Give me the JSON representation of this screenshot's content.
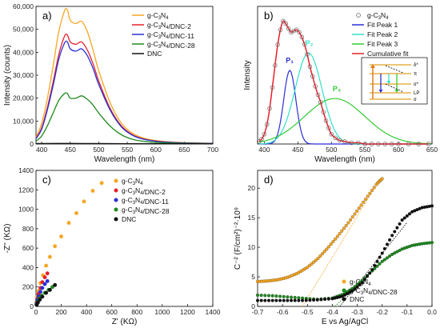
{
  "chart_data": [
    {
      "panel": "a)",
      "type": "line",
      "xlabel": "Wavelength (nm)",
      "ylabel": "Intensity (counts)",
      "xlim": [
        390,
        700
      ],
      "ylim": [
        0,
        60000
      ],
      "xticks": [
        "400",
        "450",
        "500",
        "550",
        "600",
        "650",
        "700"
      ],
      "yticks": [
        "0",
        "10,000",
        "20,000",
        "30,000",
        "40,000",
        "50,000",
        "60,000"
      ],
      "legend_position": "top-right",
      "series": [
        {
          "name": "g-C3N4",
          "color": "#f5a623",
          "peak1": 58500,
          "peak2": 54000,
          "x": [
            390,
            400,
            410,
            420,
            430,
            440,
            445,
            450,
            460,
            470,
            480,
            490,
            500,
            520,
            540,
            560,
            580,
            600,
            620,
            650,
            700
          ],
          "y": [
            3000,
            9000,
            20000,
            34000,
            49000,
            58000,
            58500,
            54000,
            52500,
            53500,
            49000,
            41000,
            32000,
            18000,
            9000,
            4500,
            2500,
            1500,
            1000,
            600,
            300
          ]
        },
        {
          "name": "g-C3N4/DNC-2",
          "color": "#e8202a",
          "x": [
            390,
            400,
            410,
            420,
            430,
            440,
            445,
            450,
            460,
            470,
            480,
            490,
            500,
            520,
            540,
            560,
            580,
            600,
            620,
            650,
            700
          ],
          "y": [
            2500,
            7000,
            16000,
            27000,
            39000,
            47000,
            47500,
            44500,
            43500,
            44500,
            41000,
            35000,
            27500,
            15500,
            7800,
            3900,
            2100,
            1300,
            800,
            500,
            250
          ]
        },
        {
          "name": "g-C3N4/DNC-11",
          "color": "#2a2fd6",
          "x": [
            390,
            400,
            410,
            420,
            430,
            440,
            445,
            450,
            460,
            470,
            480,
            490,
            500,
            520,
            540,
            560,
            580,
            600,
            620,
            650,
            700
          ],
          "y": [
            2300,
            6500,
            15000,
            25500,
            37000,
            44000,
            44500,
            41500,
            40500,
            41500,
            38500,
            33000,
            26000,
            14800,
            7400,
            3700,
            2000,
            1200,
            750,
            450,
            230
          ]
        },
        {
          "name": "g-C3N4/DNC-28",
          "color": "#1f8a1f",
          "x": [
            390,
            400,
            410,
            420,
            430,
            440,
            445,
            450,
            460,
            470,
            480,
            490,
            500,
            520,
            540,
            560,
            580,
            600,
            620,
            650,
            700
          ],
          "y": [
            1200,
            3500,
            8000,
            13500,
            19000,
            22000,
            22000,
            20000,
            20000,
            21000,
            19500,
            17000,
            13500,
            7800,
            4000,
            2000,
            1100,
            700,
            450,
            280,
            150
          ]
        },
        {
          "name": "DNC",
          "color": "#111111",
          "x": [
            390,
            400,
            450,
            500,
            550,
            600,
            650,
            700
          ],
          "y": [
            200,
            200,
            250,
            200,
            150,
            120,
            100,
            80
          ]
        }
      ]
    },
    {
      "panel": "b)",
      "type": "line",
      "xlabel": "Wavelength (nm)",
      "ylabel": "Intensity",
      "xlim": [
        390,
        650
      ],
      "xticks": [
        "400",
        "450",
        "500",
        "550",
        "600",
        "650"
      ],
      "legend_position": "top-right",
      "annotations": [
        "P₁",
        "P₂",
        "P₃"
      ],
      "series": [
        {
          "name": "g-C3N4",
          "style": "open-circles",
          "color": "#666666",
          "x": [
            392,
            396,
            400,
            404,
            408,
            412,
            416,
            420,
            424,
            428,
            432,
            436,
            440,
            444,
            448,
            452,
            456,
            460,
            464,
            468,
            472,
            476,
            480,
            484,
            488,
            492,
            496,
            500,
            506,
            512,
            520,
            530,
            540,
            550,
            560,
            570,
            580,
            590,
            600,
            615,
            630,
            645
          ],
          "y": [
            0.02,
            0.04,
            0.08,
            0.16,
            0.29,
            0.46,
            0.64,
            0.81,
            0.93,
            1.0,
            0.98,
            0.94,
            0.91,
            0.92,
            0.93,
            0.91,
            0.87,
            0.81,
            0.73,
            0.63,
            0.55,
            0.47,
            0.4,
            0.34,
            0.26,
            0.19,
            0.13,
            0.08,
            0.05,
            0.03,
            0.02,
            0.01,
            0.01,
            0.0,
            0.0,
            0.0,
            0.0,
            0.0,
            0.0,
            0.0,
            0.0,
            0.0
          ]
        },
        {
          "name": "Fit Peak 1",
          "color": "#2a2fd6",
          "center": 438,
          "height": 0.6,
          "width": 9
        },
        {
          "name": "Fit Peak 2",
          "color": "#33e0c8",
          "center": 466,
          "height": 0.74,
          "width": 20
        },
        {
          "name": "Fit Peak 3",
          "color": "#33cc33",
          "center": 505,
          "height": 0.37,
          "width": 45
        },
        {
          "name": "Cumulative fit",
          "color": "#e8202a",
          "x": [
            392,
            396,
            400,
            404,
            408,
            412,
            416,
            420,
            424,
            428,
            432,
            436,
            440,
            444,
            448,
            452,
            456,
            460,
            464,
            468,
            472,
            476,
            480,
            484,
            488,
            492,
            496,
            500,
            506,
            512,
            520,
            530,
            540,
            550,
            560,
            570,
            580,
            590,
            600,
            615,
            630,
            645
          ],
          "y": [
            0.02,
            0.04,
            0.08,
            0.16,
            0.29,
            0.46,
            0.64,
            0.81,
            0.93,
            1.0,
            0.98,
            0.94,
            0.91,
            0.92,
            0.93,
            0.91,
            0.87,
            0.81,
            0.73,
            0.63,
            0.55,
            0.47,
            0.4,
            0.34,
            0.26,
            0.19,
            0.13,
            0.08,
            0.05,
            0.03,
            0.02,
            0.01,
            0.01,
            0.0,
            0.0,
            0.0,
            0.0,
            0.0,
            0.0,
            0.0,
            0.0,
            0.0
          ]
        }
      ],
      "inset_labels": [
        "δ*",
        "π",
        "σ*",
        "LP",
        "σ"
      ]
    },
    {
      "panel": "c)",
      "type": "scatter",
      "xlabel": "Z' (KΩ)",
      "ylabel": "-Z'' (KΩ)",
      "xlim": [
        0,
        1400
      ],
      "ylim": [
        0,
        1400
      ],
      "xticks": [
        "0",
        "200",
        "400",
        "600",
        "800",
        "1000",
        "1200",
        "1400"
      ],
      "yticks": [
        "0",
        "200",
        "400",
        "600",
        "800",
        "1000",
        "1200",
        "1400"
      ],
      "legend_position": "top-left",
      "series": [
        {
          "name": "g-C3N4",
          "color": "#f5a623",
          "x": [
            5,
            10,
            20,
            35,
            55,
            80,
            110,
            150,
            200,
            260,
            320,
            380,
            450,
            520
          ],
          "y": [
            50,
            100,
            160,
            240,
            320,
            420,
            510,
            620,
            720,
            860,
            960,
            1080,
            1190,
            1270
          ]
        },
        {
          "name": "g-C3N4/DNC-2",
          "color": "#e8202a",
          "x": [
            5,
            10,
            20,
            35,
            50,
            70,
            90
          ],
          "y": [
            40,
            80,
            130,
            190,
            250,
            300,
            340
          ]
        },
        {
          "name": "g-C3N4/DNC-11",
          "color": "#2a2fd6",
          "x": [
            5,
            10,
            20,
            35,
            50,
            70,
            90
          ],
          "y": [
            30,
            65,
            105,
            150,
            190,
            230,
            260
          ]
        },
        {
          "name": "g-C3N4/DNC-28",
          "color": "#1f8a1f",
          "x": [
            5,
            12,
            25,
            45,
            70,
            100,
            130
          ],
          "y": [
            20,
            45,
            80,
            110,
            140,
            170,
            200
          ]
        },
        {
          "name": "DNC",
          "color": "#111111",
          "x": [
            5,
            15,
            30,
            50,
            80,
            110,
            150
          ],
          "y": [
            15,
            40,
            70,
            100,
            140,
            170,
            220
          ]
        }
      ]
    },
    {
      "panel": "d)",
      "type": "scatter",
      "xlabel": "E vs Ag/AgCl",
      "ylabel": "C⁻² (F/cm²)⁻²·10⁹",
      "xlim": [
        -0.7,
        0.0
      ],
      "ylim": [
        0,
        23
      ],
      "xticks": [
        "-0.7",
        "-0.6",
        "-0.5",
        "-0.4",
        "-0.3",
        "-0.2",
        "-0.1",
        "0.0"
      ],
      "yticks": [
        "0",
        "5",
        "10",
        "15",
        "20"
      ],
      "legend_position": "bottom-left",
      "series": [
        {
          "name": "g-C3N4",
          "color": "#f5a623",
          "x": [
            -0.7,
            -0.66,
            -0.62,
            -0.58,
            -0.54,
            -0.5,
            -0.46,
            -0.42,
            -0.38,
            -0.34,
            -0.3,
            -0.26,
            -0.22,
            -0.2
          ],
          "y": [
            4.2,
            4.3,
            4.5,
            4.9,
            5.6,
            6.6,
            8.0,
            9.8,
            11.8,
            13.9,
            16.2,
            18.5,
            20.8,
            21.6
          ]
        },
        {
          "name": "g-C3N4/DNC-28",
          "color": "#1f8a1f",
          "x": [
            -0.7,
            -0.64,
            -0.58,
            -0.52,
            -0.46,
            -0.4,
            -0.36,
            -0.32,
            -0.28,
            -0.24,
            -0.2,
            -0.16,
            -0.12,
            -0.08,
            -0.04,
            0.0
          ],
          "y": [
            1.9,
            1.8,
            1.6,
            1.4,
            1.2,
            1.4,
            2.0,
            3.0,
            4.4,
            6.0,
            7.6,
            8.8,
            9.7,
            10.3,
            10.6,
            10.8
          ]
        },
        {
          "name": "DNC",
          "color": "#111111",
          "x": [
            -0.7,
            -0.64,
            -0.58,
            -0.52,
            -0.46,
            -0.4,
            -0.36,
            -0.32,
            -0.28,
            -0.24,
            -0.2,
            -0.16,
            -0.12,
            -0.08,
            -0.04,
            0.0
          ],
          "y": [
            1.0,
            1.0,
            1.0,
            1.0,
            1.1,
            1.3,
            1.7,
            2.6,
            4.0,
            6.2,
            9.0,
            12.0,
            14.6,
            16.0,
            16.7,
            17.0
          ]
        }
      ],
      "fit_lines": [
        {
          "color": "#f5a623",
          "x": [
            -0.52,
            -0.22
          ],
          "y": [
            0,
            20.8
          ]
        },
        {
          "color": "#1f8a1f",
          "x": [
            -0.39,
            -0.2
          ],
          "y": [
            0,
            7.6
          ]
        },
        {
          "color": "#111111",
          "x": [
            -0.37,
            -0.1
          ],
          "y": [
            0,
            14.2
          ]
        }
      ]
    }
  ]
}
